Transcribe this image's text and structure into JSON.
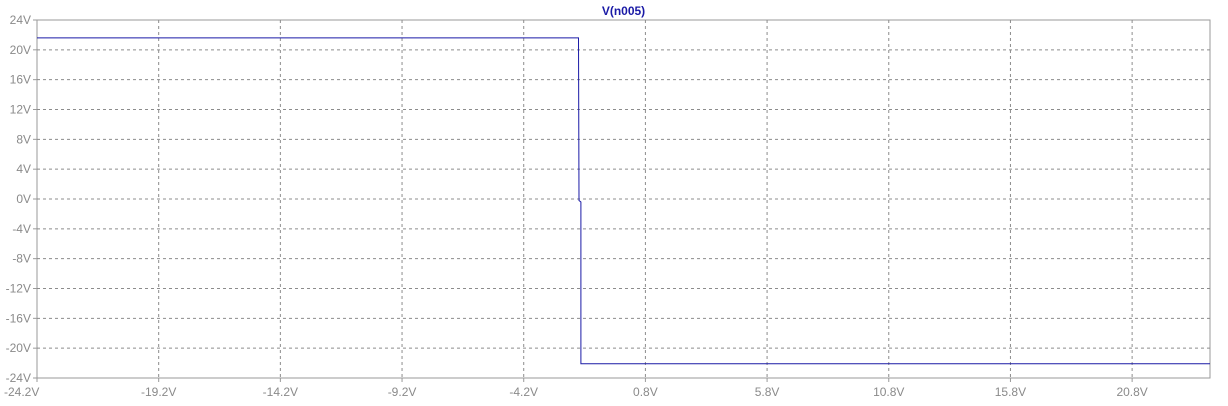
{
  "chart_data": {
    "type": "line",
    "title": "V(n005)",
    "xlabel": "",
    "ylabel": "",
    "xlim": [
      -24.2,
      24.0
    ],
    "ylim": [
      -24,
      24
    ],
    "grid": true,
    "x_ticks": [
      -24.2,
      -19.2,
      -14.2,
      -9.2,
      -4.2,
      0.8,
      5.8,
      10.8,
      15.8,
      20.8
    ],
    "x_tick_labels": [
      "-24.2V",
      "-19.2V",
      "-14.2V",
      "-9.2V",
      "-4.2V",
      "0.8V",
      "5.8V",
      "10.8V",
      "15.8V",
      "20.8V"
    ],
    "y_ticks": [
      24,
      20,
      16,
      12,
      8,
      4,
      0,
      -4,
      -8,
      -12,
      -16,
      -20,
      -24
    ],
    "y_tick_labels": [
      "24V",
      "20V",
      "16V",
      "12V",
      "8V",
      "4V",
      "0V",
      "-4V",
      "-8V",
      "-12V",
      "-16V",
      "-20V",
      "-24V"
    ],
    "series": [
      {
        "name": "V(n005)",
        "color": "#1a1aa6",
        "x": [
          -24.2,
          -1.95,
          -1.93,
          -1.93,
          -1.85,
          -1.85,
          24.0
        ],
        "y": [
          21.6,
          21.6,
          0.0,
          -0.2,
          -0.4,
          -22.1,
          -22.1
        ]
      }
    ]
  }
}
